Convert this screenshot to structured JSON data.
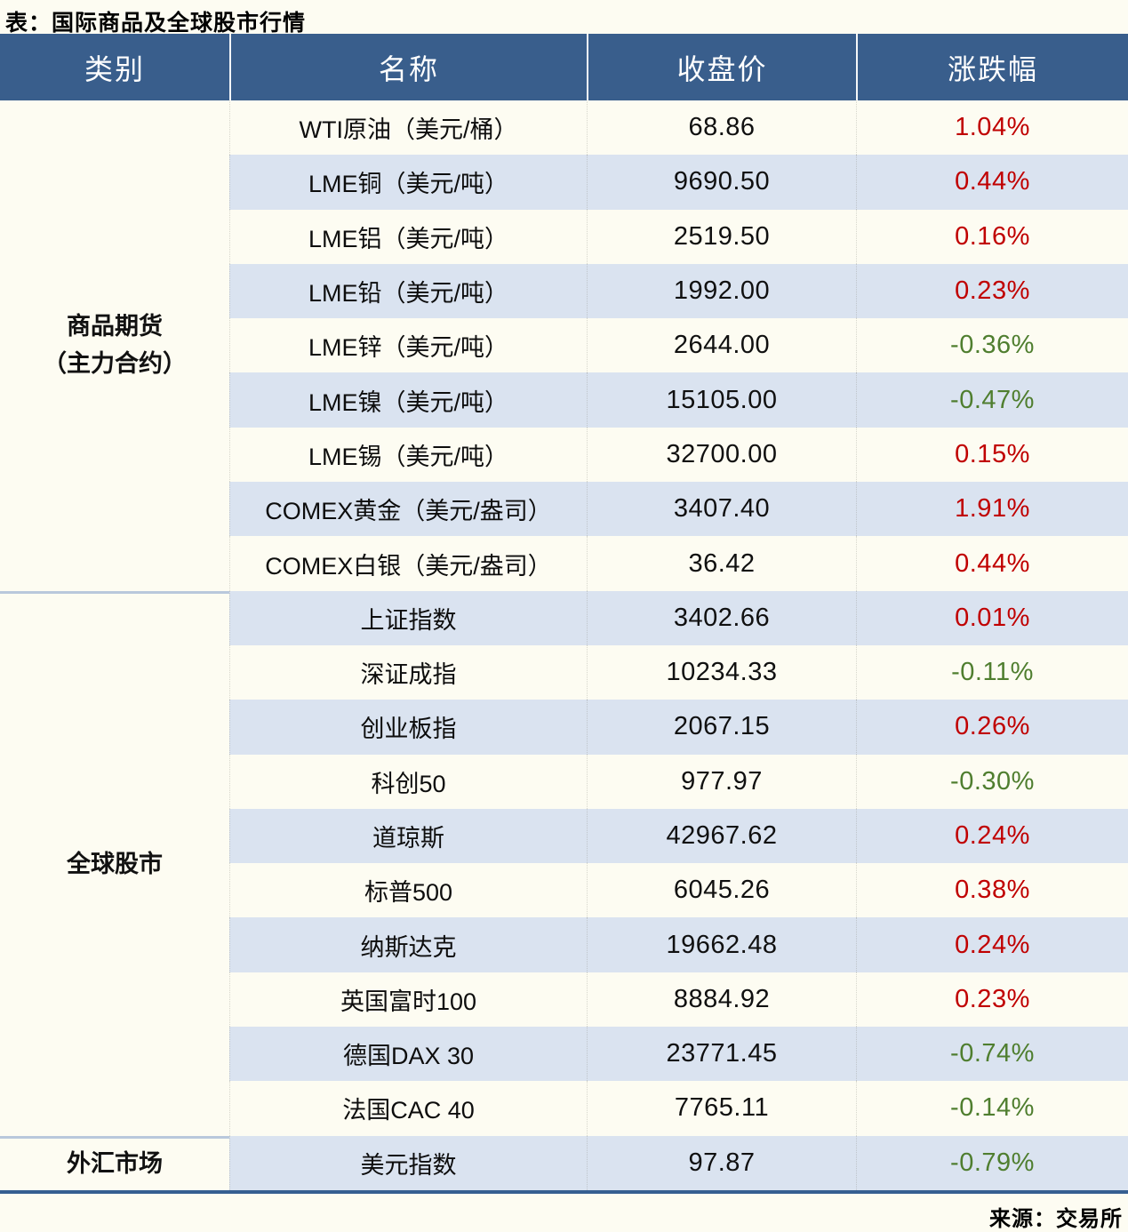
{
  "title": "表：国际商品及全球股市行情",
  "source": "来源：交易所",
  "colors": {
    "header_bg": "#395E8C",
    "header_text": "#FFFFFF",
    "stripe_blue": "#DAE3F0",
    "cream_bg": "#FDFCF2",
    "up_red": "#C00000",
    "down_green": "#4F7E2F",
    "bottom_border": "#365F91",
    "divider": "#B9C8DC"
  },
  "chart_data": {
    "type": "table",
    "title": "表：国际商品及全球股市行情",
    "columns": [
      "类别",
      "名称",
      "收盘价",
      "涨跌幅"
    ],
    "sections": [
      {
        "category": "商品期货\n（主力合约）",
        "rows": [
          {
            "name": "WTI原油（美元/桶）",
            "close": "68.86",
            "change": "1.04%",
            "direction": "up"
          },
          {
            "name": "LME铜（美元/吨）",
            "close": "9690.50",
            "change": "0.44%",
            "direction": "up"
          },
          {
            "name": "LME铝（美元/吨）",
            "close": "2519.50",
            "change": "0.16%",
            "direction": "up"
          },
          {
            "name": "LME铅（美元/吨）",
            "close": "1992.00",
            "change": "0.23%",
            "direction": "up"
          },
          {
            "name": "LME锌（美元/吨）",
            "close": "2644.00",
            "change": "-0.36%",
            "direction": "down"
          },
          {
            "name": "LME镍（美元/吨）",
            "close": "15105.00",
            "change": "-0.47%",
            "direction": "down"
          },
          {
            "name": "LME锡（美元/吨）",
            "close": "32700.00",
            "change": "0.15%",
            "direction": "up"
          },
          {
            "name": "COMEX黄金（美元/盎司）",
            "close": "3407.40",
            "change": "1.91%",
            "direction": "up"
          },
          {
            "name": "COMEX白银（美元/盎司）",
            "close": "36.42",
            "change": "0.44%",
            "direction": "up"
          }
        ]
      },
      {
        "category": "全球股市",
        "rows": [
          {
            "name": "上证指数",
            "close": "3402.66",
            "change": "0.01%",
            "direction": "up"
          },
          {
            "name": "深证成指",
            "close": "10234.33",
            "change": "-0.11%",
            "direction": "down"
          },
          {
            "name": "创业板指",
            "close": "2067.15",
            "change": "0.26%",
            "direction": "up"
          },
          {
            "name": "科创50",
            "close": "977.97",
            "change": "-0.30%",
            "direction": "down"
          },
          {
            "name": "道琼斯",
            "close": "42967.62",
            "change": "0.24%",
            "direction": "up"
          },
          {
            "name": "标普500",
            "close": "6045.26",
            "change": "0.38%",
            "direction": "up"
          },
          {
            "name": "纳斯达克",
            "close": "19662.48",
            "change": "0.24%",
            "direction": "up"
          },
          {
            "name": "英国富时100",
            "close": "8884.92",
            "change": "0.23%",
            "direction": "up"
          },
          {
            "name": "德国DAX 30",
            "close": "23771.45",
            "change": "-0.74%",
            "direction": "down"
          },
          {
            "name": "法国CAC 40",
            "close": "7765.11",
            "change": "-0.14%",
            "direction": "down"
          }
        ]
      },
      {
        "category": "外汇市场",
        "rows": [
          {
            "name": "美元指数",
            "close": "97.87",
            "change": "-0.79%",
            "direction": "down"
          }
        ]
      }
    ],
    "source": "来源：交易所"
  }
}
